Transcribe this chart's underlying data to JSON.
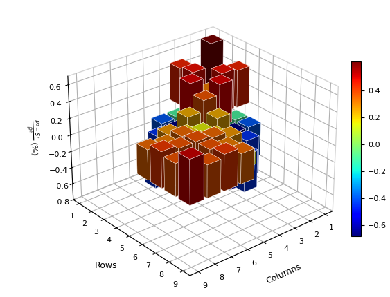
{
  "xlabel": "Columns",
  "ylabel": "Rows",
  "zlabel": "$\\frac{P^2 - S^2}{P^2}$ (%)",
  "zlim": [
    -0.8,
    0.7
  ],
  "colorbar_min": -0.68,
  "colorbar_max": 0.62,
  "xticks": [
    1,
    2,
    3,
    4,
    5,
    6,
    7,
    8,
    9
  ],
  "yticks": [
    1,
    2,
    3,
    4,
    5,
    6,
    7,
    8,
    9
  ],
  "zticks": [
    -0.8,
    -0.6,
    -0.4,
    -0.2,
    0.0,
    0.2,
    0.4,
    0.6
  ],
  "cbar_ticks": [
    -0.6,
    -0.4,
    -0.2,
    0.0,
    0.2,
    0.4
  ],
  "background_color": "#ffffff",
  "data": [
    [
      0.62,
      0.22,
      0.45,
      0.0,
      0.0,
      0.0,
      0.0,
      0.0,
      0.0
    ],
    [
      0.22,
      0.12,
      0.48,
      -0.1,
      -0.4,
      0.0,
      0.0,
      0.0,
      0.0
    ],
    [
      0.45,
      0.48,
      0.32,
      0.5,
      -0.68,
      -0.45,
      0.0,
      0.0,
      0.0
    ],
    [
      0.0,
      -0.1,
      0.5,
      0.38,
      0.25,
      -0.52,
      -0.45,
      0.0,
      0.0
    ],
    [
      0.0,
      -0.4,
      -0.68,
      0.25,
      0.15,
      0.2,
      0.28,
      0.15,
      0.0
    ],
    [
      0.0,
      0.0,
      -0.45,
      -0.52,
      0.2,
      0.22,
      0.35,
      0.32,
      0.35
    ],
    [
      0.0,
      0.0,
      0.0,
      -0.45,
      0.28,
      0.35,
      0.38,
      0.38,
      0.42
    ],
    [
      0.0,
      0.0,
      0.0,
      0.0,
      0.15,
      0.32,
      0.38,
      0.28,
      0.38
    ],
    [
      0.0,
      0.0,
      0.0,
      0.0,
      0.0,
      0.35,
      0.42,
      0.38,
      0.52
    ]
  ],
  "mask": [
    [
      1,
      1,
      1,
      0,
      0,
      0,
      0,
      0,
      0
    ],
    [
      1,
      1,
      1,
      1,
      1,
      0,
      0,
      0,
      0
    ],
    [
      1,
      1,
      1,
      1,
      1,
      1,
      0,
      0,
      0
    ],
    [
      0,
      1,
      1,
      1,
      1,
      1,
      1,
      0,
      0
    ],
    [
      0,
      1,
      1,
      1,
      1,
      1,
      1,
      1,
      0
    ],
    [
      0,
      0,
      1,
      1,
      1,
      1,
      1,
      1,
      1
    ],
    [
      0,
      0,
      0,
      1,
      1,
      1,
      1,
      1,
      1
    ],
    [
      0,
      0,
      0,
      0,
      1,
      1,
      1,
      1,
      1
    ],
    [
      0,
      0,
      0,
      0,
      0,
      1,
      1,
      1,
      1
    ]
  ],
  "elev": 28,
  "azim": 50,
  "bar_width": 0.8,
  "bar_depth": 0.8
}
